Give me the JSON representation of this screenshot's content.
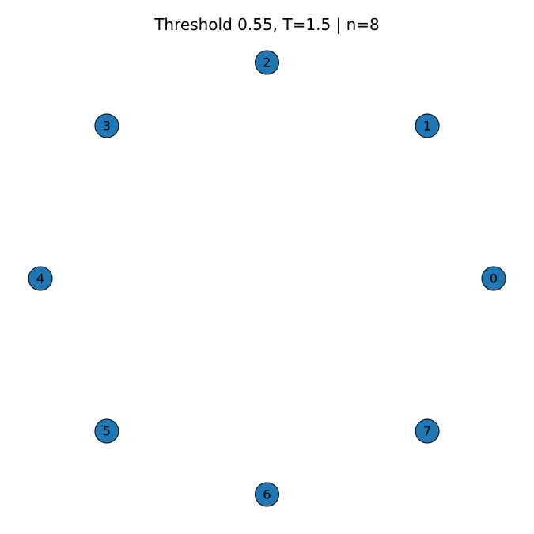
{
  "title": "Threshold 0.55, T=1.5 | n=8",
  "colors": {
    "node_fill": "#1f77b4",
    "node_stroke": "#000000",
    "label": "#000000",
    "background": "#ffffff"
  },
  "graph": {
    "layout": "circular",
    "nodes": [
      {
        "id": "0",
        "label": "0"
      },
      {
        "id": "1",
        "label": "1"
      },
      {
        "id": "2",
        "label": "2"
      },
      {
        "id": "3",
        "label": "3"
      },
      {
        "id": "4",
        "label": "4"
      },
      {
        "id": "5",
        "label": "5"
      },
      {
        "id": "6",
        "label": "6"
      },
      {
        "id": "7",
        "label": "7"
      }
    ],
    "edges": []
  }
}
